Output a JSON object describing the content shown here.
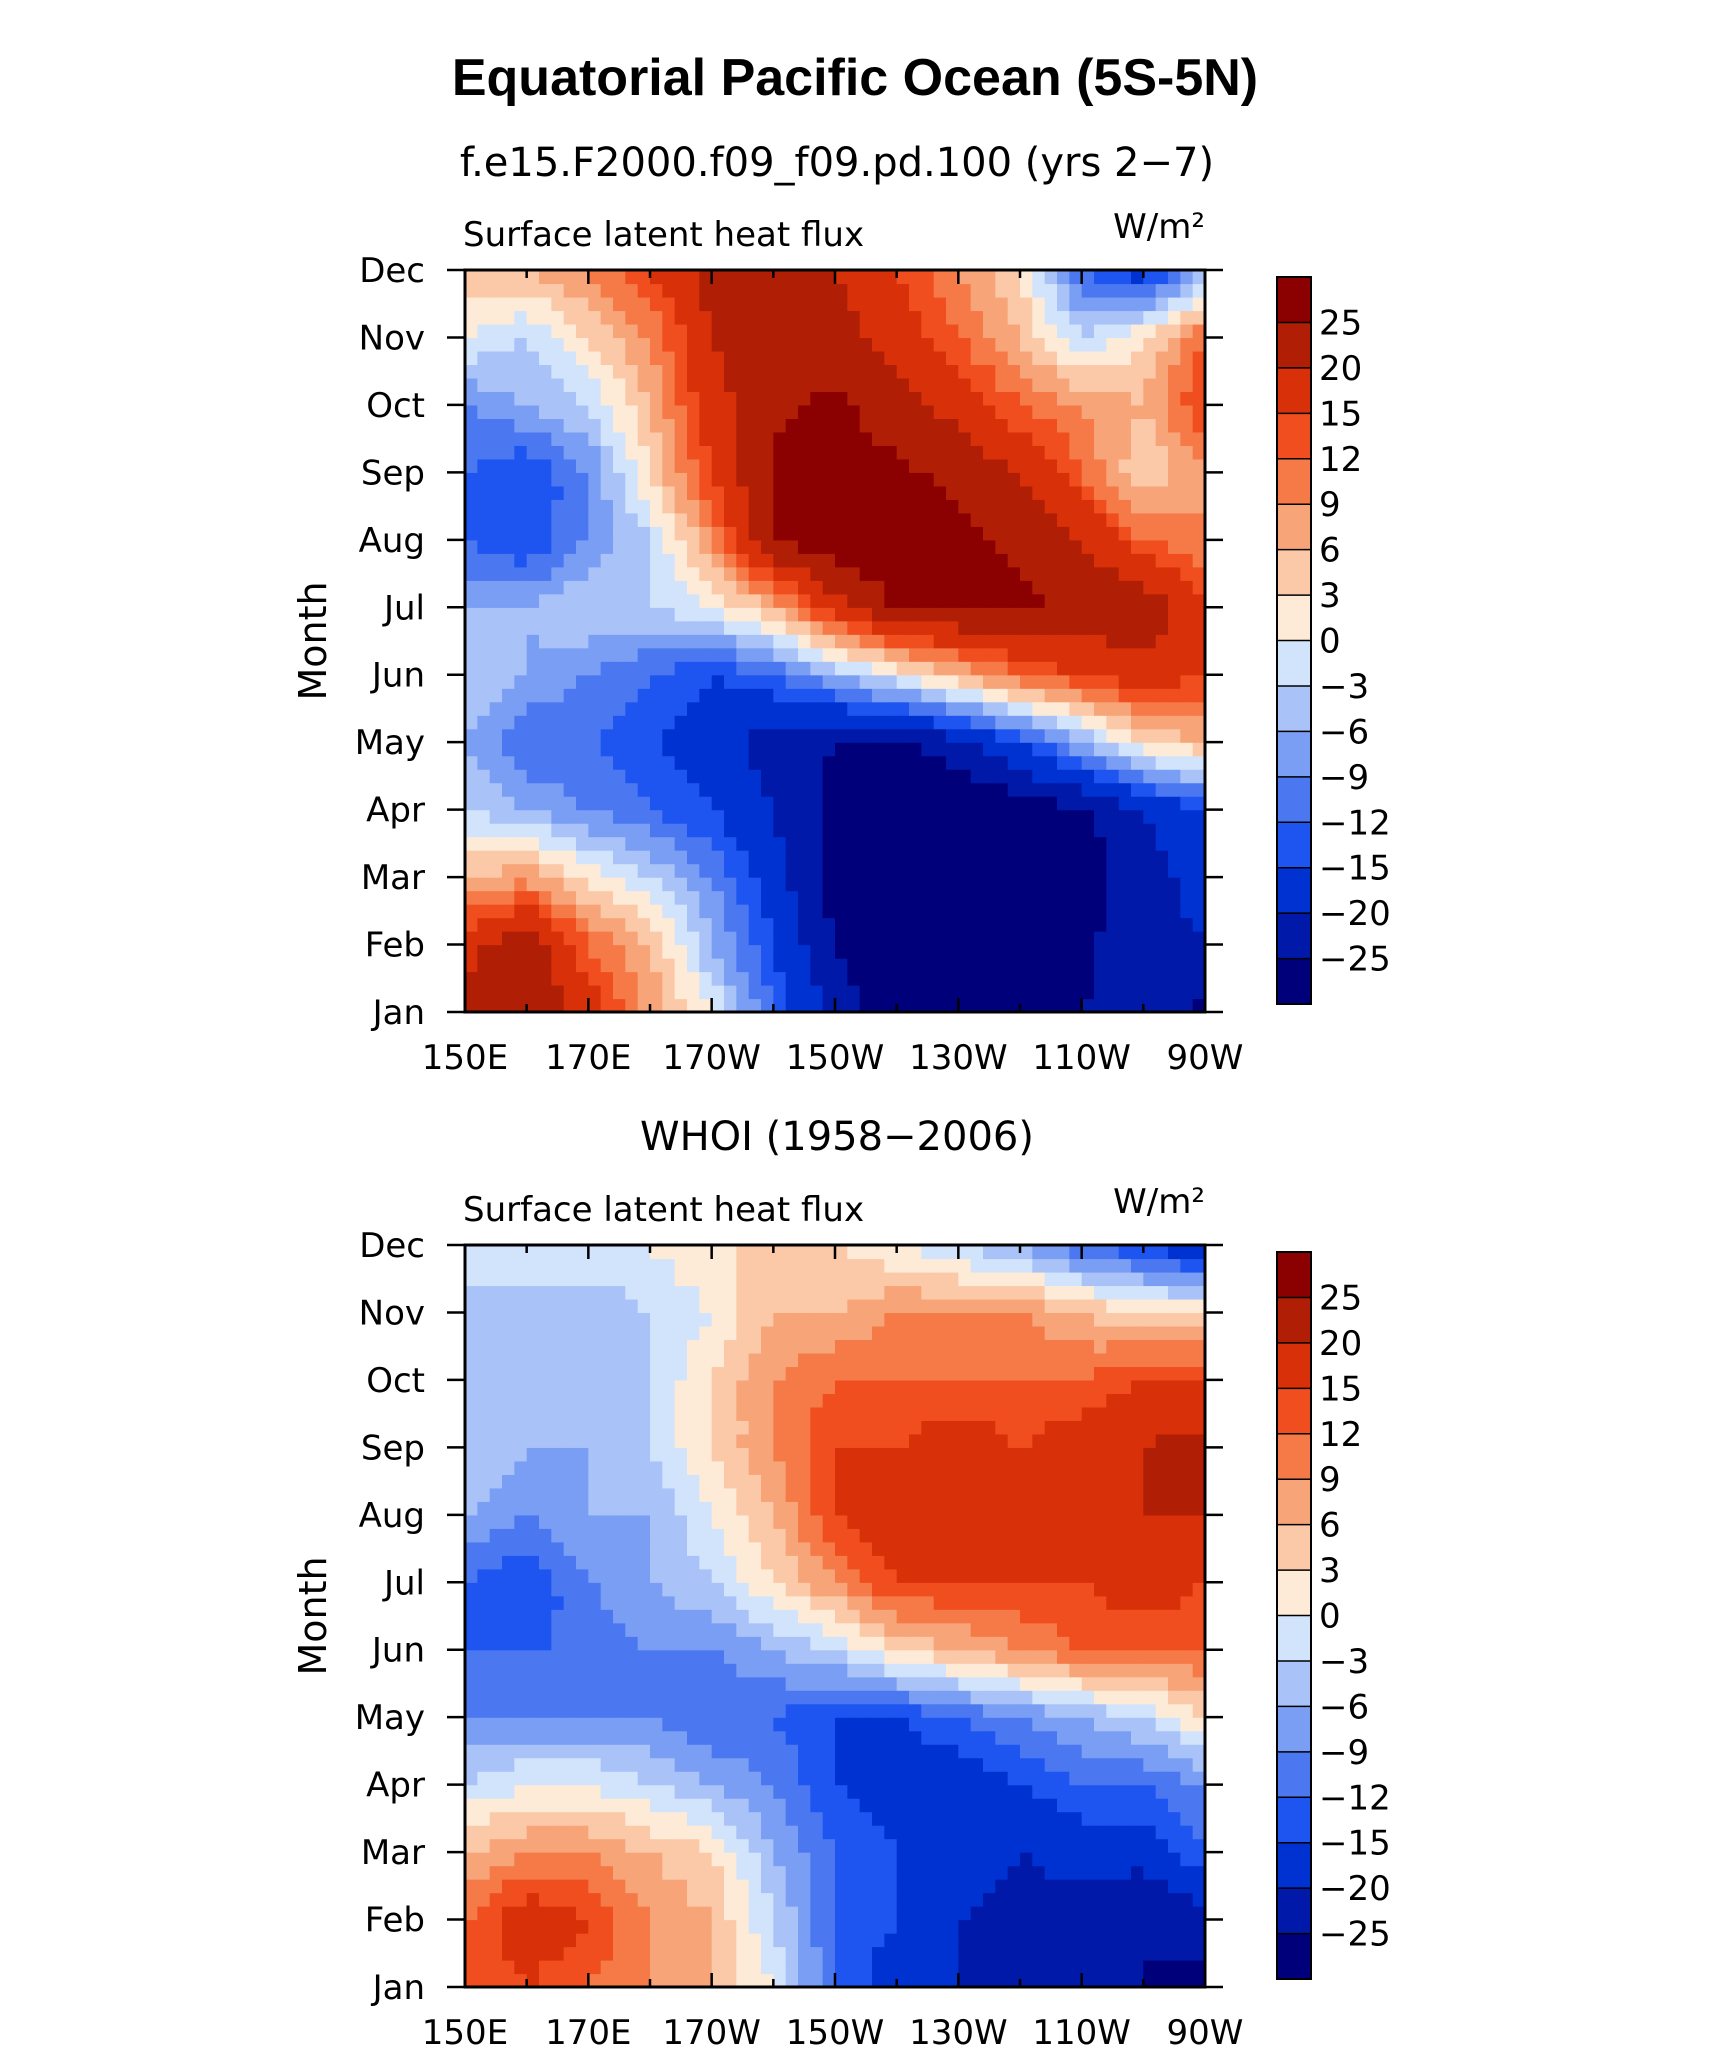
{
  "title": "Equatorial Pacific Ocean (5S-5N)",
  "colormap": {
    "colors": [
      "#00007a",
      "#0019a8",
      "#0032d2",
      "#1e55f0",
      "#4b78f0",
      "#7a9ef4",
      "#a9c2f8",
      "#d2e4fb",
      "#fdebd8",
      "#fbc9a8",
      "#f7a478",
      "#f57a48",
      "#f04e1e",
      "#d83008",
      "#b01e05",
      "#8b0000"
    ],
    "levels": [
      -25,
      -20,
      -15,
      -12,
      -9,
      -6,
      -3,
      0,
      3,
      6,
      9,
      12,
      15,
      20,
      25
    ],
    "level_labels": [
      "25",
      "20",
      "15",
      "12",
      "9",
      "6",
      "3",
      "0",
      "−3",
      "−6",
      "−9",
      "−12",
      "−15",
      "−20",
      "−25"
    ]
  },
  "chart_data": [
    {
      "type": "heatmap",
      "title": "f.e15.F2000.f09_f09.pd.100 (yrs 2−7)",
      "subtitle_left": "Surface latent heat flux",
      "units": "W/m²",
      "ylabel": "Month",
      "x_ticks": [
        "150E",
        "170E",
        "170W",
        "150W",
        "130W",
        "110W",
        "90W"
      ],
      "x_values": [
        150,
        160,
        170,
        180,
        190,
        200,
        210,
        220,
        230,
        240,
        250,
        260,
        270
      ],
      "y_ticks": [
        "Jan",
        "Feb",
        "Mar",
        "Apr",
        "May",
        "Jun",
        "Jul",
        "Aug",
        "Sep",
        "Oct",
        "Nov",
        "Dec"
      ],
      "z": [
        [
          22,
          24,
          18,
          8,
          0,
          -12,
          -22,
          -28,
          -28,
          -27,
          -25,
          -24,
          -26
        ],
        [
          18,
          24,
          12,
          6,
          -6,
          -15,
          -25,
          -30,
          -30,
          -28,
          -26,
          -22,
          -20
        ],
        [
          6,
          8,
          2,
          -3,
          -9,
          -18,
          -27,
          -30,
          -30,
          -30,
          -28,
          -22,
          -18
        ],
        [
          -3,
          -6,
          -9,
          -12,
          -15,
          -20,
          -27,
          -30,
          -30,
          -28,
          -26,
          -20,
          -15
        ],
        [
          -6,
          -12,
          -12,
          -15,
          -18,
          -22,
          -25,
          -26,
          -22,
          -15,
          -6,
          3,
          6
        ],
        [
          -3,
          -6,
          -9,
          -12,
          -15,
          -12,
          -6,
          0,
          6,
          12,
          15,
          18,
          15
        ],
        [
          -6,
          -6,
          -3,
          -3,
          0,
          6,
          18,
          26,
          26,
          26,
          24,
          24,
          15
        ],
        [
          -12,
          -15,
          -9,
          -3,
          9,
          26,
          28,
          28,
          26,
          24,
          20,
          12,
          9
        ],
        [
          -12,
          -15,
          -9,
          3,
          15,
          26,
          28,
          26,
          24,
          20,
          12,
          3,
          9
        ],
        [
          -9,
          -6,
          -3,
          6,
          18,
          24,
          26,
          22,
          18,
          12,
          9,
          6,
          15
        ],
        [
          0,
          -3,
          3,
          9,
          20,
          24,
          22,
          18,
          12,
          6,
          -3,
          3,
          12
        ],
        [
          6,
          6,
          9,
          15,
          22,
          24,
          20,
          15,
          9,
          3,
          -12,
          -18,
          -6
        ]
      ]
    },
    {
      "type": "heatmap",
      "title": "WHOI (1958−2006)",
      "subtitle_left": "Surface latent heat flux",
      "units": "W/m²",
      "ylabel": "Month",
      "x_ticks": [
        "150E",
        "170E",
        "170W",
        "150W",
        "130W",
        "110W",
        "90W"
      ],
      "x_values": [
        150,
        160,
        170,
        180,
        190,
        200,
        210,
        220,
        230,
        240,
        250,
        260,
        270
      ],
      "y_ticks": [
        "Jan",
        "Feb",
        "Mar",
        "Apr",
        "May",
        "Jun",
        "Jul",
        "Aug",
        "Sep",
        "Oct",
        "Nov",
        "Dec"
      ],
      "z": [
        [
          12,
          15,
          12,
          9,
          6,
          0,
          -12,
          -18,
          -20,
          -22,
          -22,
          -25,
          -28
        ],
        [
          12,
          18,
          15,
          9,
          6,
          -3,
          -12,
          -15,
          -20,
          -22,
          -22,
          -25,
          -22
        ],
        [
          6,
          9,
          9,
          6,
          3,
          -6,
          -12,
          -15,
          -18,
          -20,
          -18,
          -18,
          -12
        ],
        [
          -3,
          0,
          0,
          -3,
          -6,
          -9,
          -15,
          -18,
          -18,
          -15,
          -12,
          -12,
          -9
        ],
        [
          -9,
          -9,
          -9,
          -9,
          -12,
          -12,
          -15,
          -15,
          -12,
          -9,
          -6,
          -3,
          3
        ],
        [
          -12,
          -12,
          -12,
          -9,
          -9,
          -6,
          -3,
          3,
          6,
          9,
          12,
          12,
          12
        ],
        [
          -12,
          -15,
          -9,
          -6,
          -3,
          3,
          9,
          15,
          15,
          15,
          15,
          18,
          15
        ],
        [
          -6,
          -9,
          -6,
          -6,
          0,
          6,
          15,
          20,
          20,
          15,
          18,
          20,
          20
        ],
        [
          -3,
          -6,
          -6,
          -3,
          3,
          9,
          15,
          15,
          18,
          15,
          18,
          20,
          22
        ],
        [
          -3,
          -6,
          -6,
          -3,
          3,
          9,
          12,
          12,
          12,
          12,
          12,
          15,
          15
        ],
        [
          -6,
          -6,
          -6,
          -3,
          0,
          6,
          6,
          9,
          9,
          9,
          6,
          3,
          3
        ],
        [
          0,
          0,
          0,
          0,
          3,
          3,
          3,
          0,
          -3,
          -6,
          -12,
          -15,
          -20
        ]
      ]
    }
  ]
}
